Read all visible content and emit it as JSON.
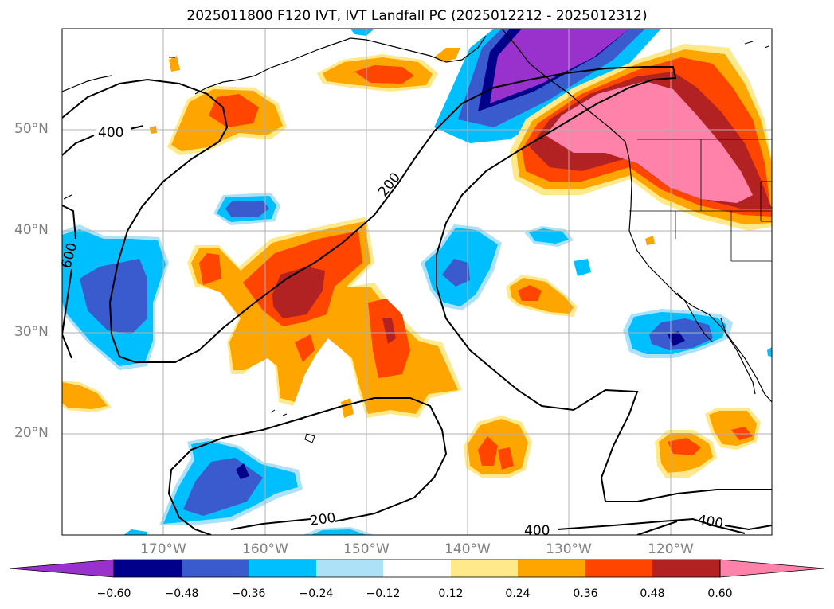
{
  "title": "2025011800 F120 IVT, IVT Landfall PC (2025012212 - 2025012312)",
  "map": {
    "lat_labels": [
      "50°N",
      "40°N",
      "30°N",
      "20°N"
    ],
    "lon_labels": [
      "170°W",
      "160°W",
      "150°W",
      "140°W",
      "130°W",
      "120°W"
    ],
    "contour_labels": [
      "400",
      "200",
      "600",
      "200",
      "400",
      "400"
    ]
  },
  "colorbar": {
    "ticks": [
      "−0.60",
      "−0.48",
      "−0.36",
      "−0.24",
      "−0.12",
      "0.12",
      "0.24",
      "0.36",
      "0.48",
      "0.60"
    ],
    "colors": [
      "#9932CC",
      "#00008B",
      "#3A5BCD",
      "#00BFFF",
      "#ADE1F8",
      "#FFFFFF",
      "#FFE98A",
      "#FFA500",
      "#FF4500",
      "#B22222",
      "#FF82AB"
    ]
  }
}
